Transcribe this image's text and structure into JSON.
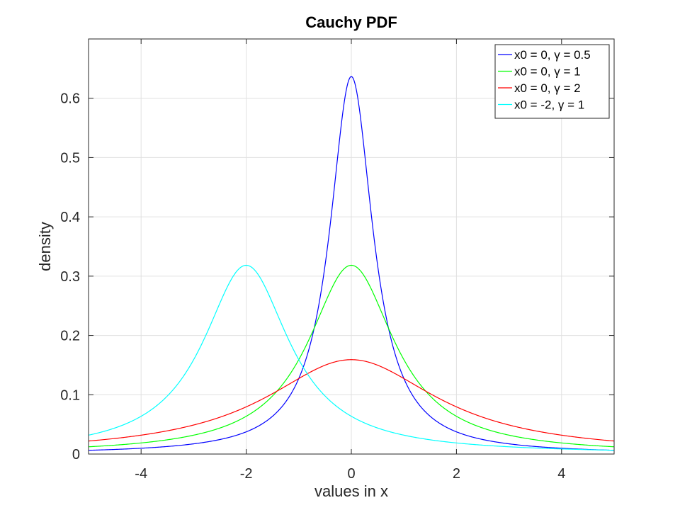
{
  "chart_data": {
    "type": "line",
    "title": "Cauchy PDF",
    "xlabel": "values in x",
    "ylabel": "density",
    "xlim": [
      -5,
      5
    ],
    "ylim": [
      0,
      0.7
    ],
    "xticks": [
      -4,
      -2,
      0,
      2,
      4
    ],
    "xtick_labels": [
      "-4",
      "-2",
      "0",
      "2",
      "4"
    ],
    "yticks": [
      0,
      0.1,
      0.2,
      0.3,
      0.4,
      0.5,
      0.6
    ],
    "ytick_labels": [
      "0",
      "0.1",
      "0.2",
      "0.3",
      "0.4",
      "0.5",
      "0.6"
    ],
    "grid": true,
    "legend_position": "top-right",
    "series": [
      {
        "name": "x0 = 0, γ = 0.5",
        "x0": 0,
        "gamma": 0.5,
        "color": "#0000ff",
        "x": [
          -5,
          -4,
          -3,
          -2,
          -1,
          -0.5,
          0,
          0.5,
          1,
          2,
          3,
          4,
          5
        ],
        "values": [
          0.0063,
          0.0098,
          0.0173,
          0.0374,
          0.1273,
          0.3183,
          0.6366,
          0.3183,
          0.1273,
          0.0374,
          0.0173,
          0.0098,
          0.0063
        ]
      },
      {
        "name": "x0 = 0, γ = 1",
        "x0": 0,
        "gamma": 1,
        "color": "#00ff00",
        "x": [
          -5,
          -4,
          -3,
          -2,
          -1,
          0,
          1,
          2,
          3,
          4,
          5
        ],
        "values": [
          0.0122,
          0.0187,
          0.0318,
          0.0637,
          0.1592,
          0.3183,
          0.1592,
          0.0637,
          0.0318,
          0.0187,
          0.0122
        ]
      },
      {
        "name": "x0 = 0, γ = 2",
        "x0": 0,
        "gamma": 2,
        "color": "#ff0000",
        "x": [
          -5,
          -4,
          -3,
          -2,
          -1,
          0,
          1,
          2,
          3,
          4,
          5
        ],
        "values": [
          0.022,
          0.0318,
          0.049,
          0.0796,
          0.1273,
          0.1592,
          0.1273,
          0.0796,
          0.049,
          0.0318,
          0.022
        ]
      },
      {
        "name": "x0 = -2, γ = 1",
        "x0": -2,
        "gamma": 1,
        "color": "#00ffff",
        "x": [
          -5,
          -4,
          -3,
          -2,
          -1,
          0,
          1,
          2,
          3,
          4,
          5
        ],
        "values": [
          0.0318,
          0.0637,
          0.1592,
          0.3183,
          0.1592,
          0.0637,
          0.0318,
          0.0187,
          0.0122,
          0.0086,
          0.0064
        ]
      }
    ]
  }
}
